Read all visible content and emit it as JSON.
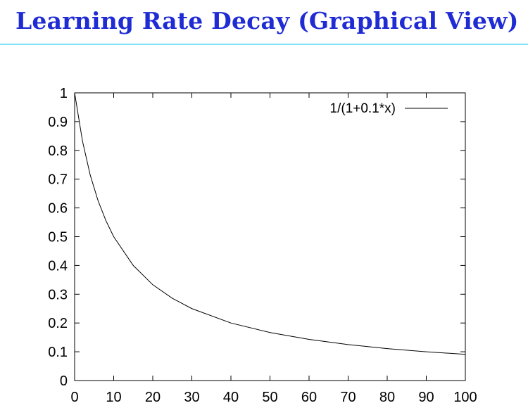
{
  "slide": {
    "title": "Learning Rate Decay (Graphical View)",
    "title_color": "#1f2bd3",
    "rule_color": "#7fe3f6"
  },
  "chart_data": {
    "type": "line",
    "title": "",
    "xlabel": "",
    "ylabel": "",
    "xlim": [
      0,
      100
    ],
    "ylim": [
      0,
      1
    ],
    "x_ticks": [
      0,
      10,
      20,
      30,
      40,
      50,
      60,
      70,
      80,
      90,
      100
    ],
    "y_ticks": [
      0,
      0.1,
      0.2,
      0.3,
      0.4,
      0.5,
      0.6,
      0.7,
      0.8,
      0.9,
      1
    ],
    "grid": false,
    "legend_position": "top-right",
    "series": [
      {
        "name": "1/(1+0.1*x)",
        "color": "#000000",
        "x": [
          0,
          2,
          4,
          6,
          8,
          10,
          15,
          20,
          25,
          30,
          40,
          50,
          60,
          70,
          80,
          90,
          100
        ],
        "y": [
          1.0,
          0.833,
          0.714,
          0.625,
          0.556,
          0.5,
          0.4,
          0.333,
          0.286,
          0.25,
          0.2,
          0.167,
          0.143,
          0.125,
          0.111,
          0.1,
          0.091
        ]
      }
    ]
  }
}
